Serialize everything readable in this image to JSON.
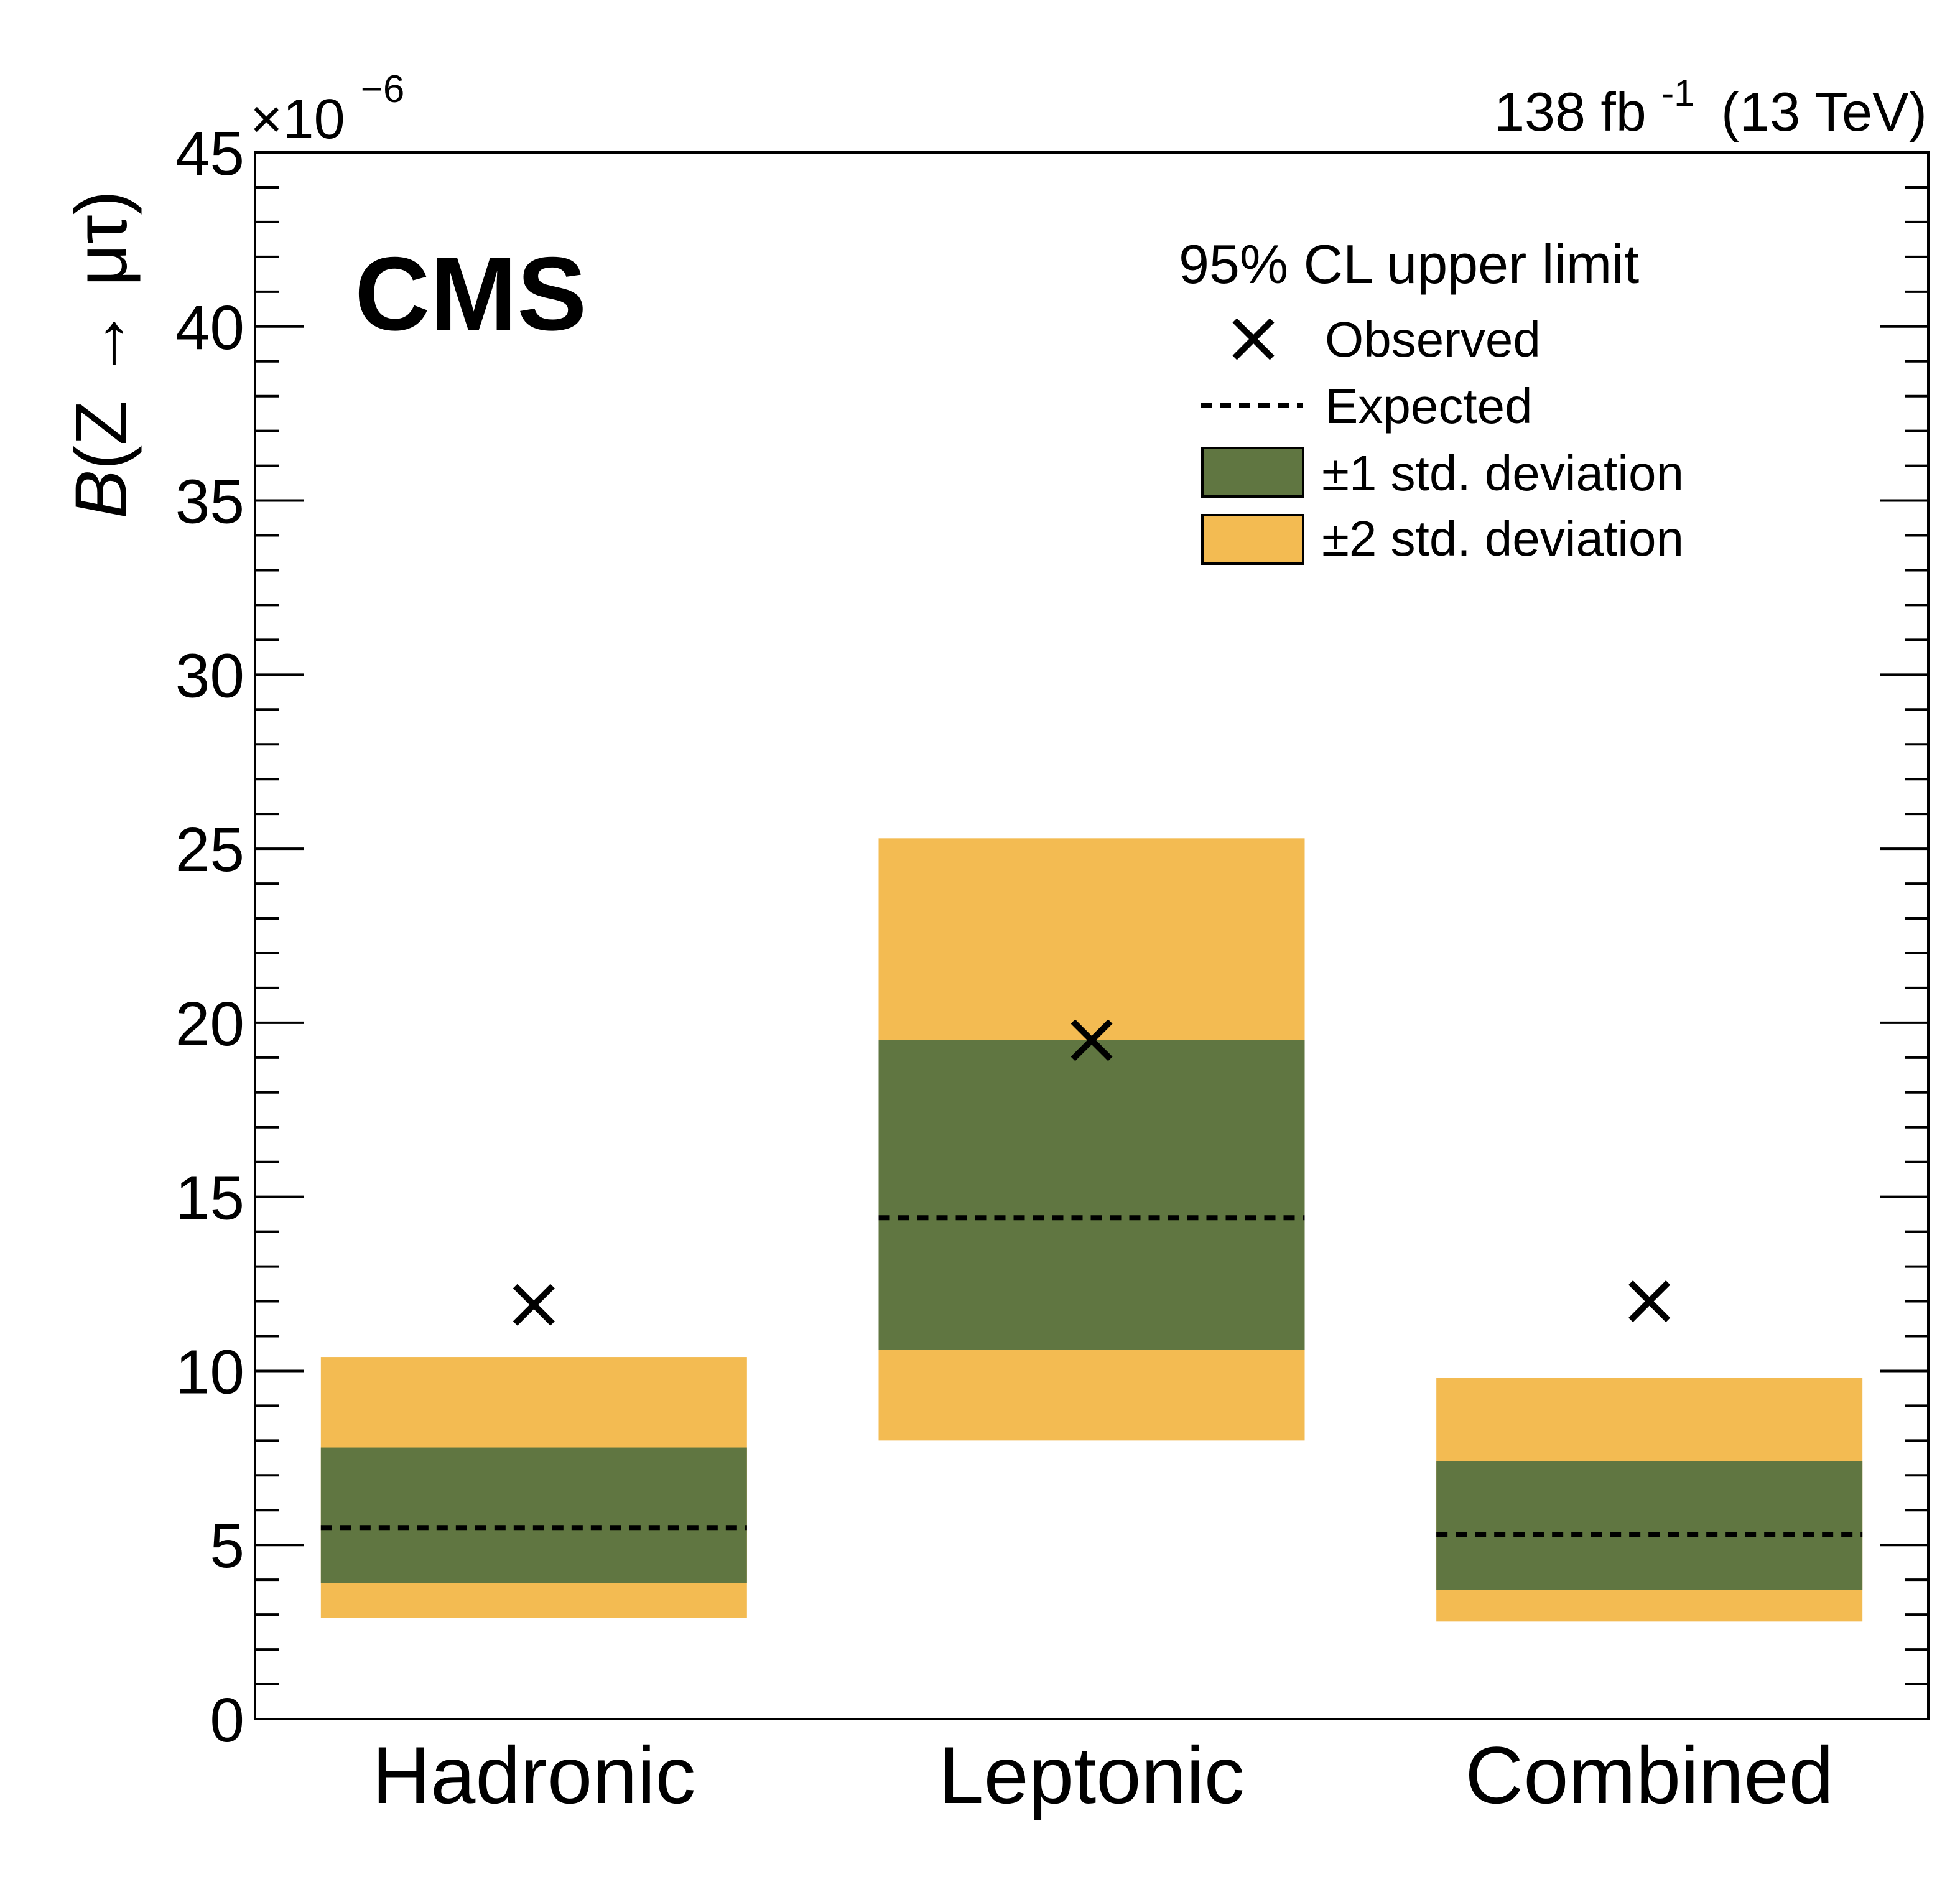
{
  "chart_data": {
    "type": "bar",
    "experiment": "CMS",
    "lumi_text": "138 fb",
    "lumi_sup": "-1",
    "energy_text": "(13 TeV)",
    "ylabel_prefix": "B",
    "ylabel_rest": "(Z → μτ)",
    "y_multiplier_base": "×10",
    "y_multiplier_exp": "−6",
    "ylim": [
      0,
      45
    ],
    "y_major_ticks": [
      0,
      5,
      10,
      15,
      20,
      25,
      30,
      35,
      40,
      45
    ],
    "y_minor_step": 1,
    "categories": [
      "Hadronic",
      "Leptonic",
      "Combined"
    ],
    "observed": [
      11.9,
      19.5,
      12.0
    ],
    "expected": [
      5.5,
      14.4,
      5.3
    ],
    "band_1sigma": [
      [
        3.9,
        7.8
      ],
      [
        10.6,
        19.5
      ],
      [
        3.7,
        7.4
      ]
    ],
    "band_2sigma": [
      [
        2.9,
        10.4
      ],
      [
        8.0,
        25.3
      ],
      [
        2.8,
        9.8
      ]
    ],
    "colors": {
      "band_1sigma": "#607641",
      "band_2sigma": "#f3bb52",
      "expected": "#000000",
      "observed": "#000000"
    },
    "legend": {
      "title": "95% CL upper limit",
      "position": "top-right",
      "entries": {
        "observed": "Observed",
        "expected": "Expected",
        "band_1sigma": "±1 std. deviation",
        "band_2sigma": "±2 std. deviation"
      }
    }
  }
}
